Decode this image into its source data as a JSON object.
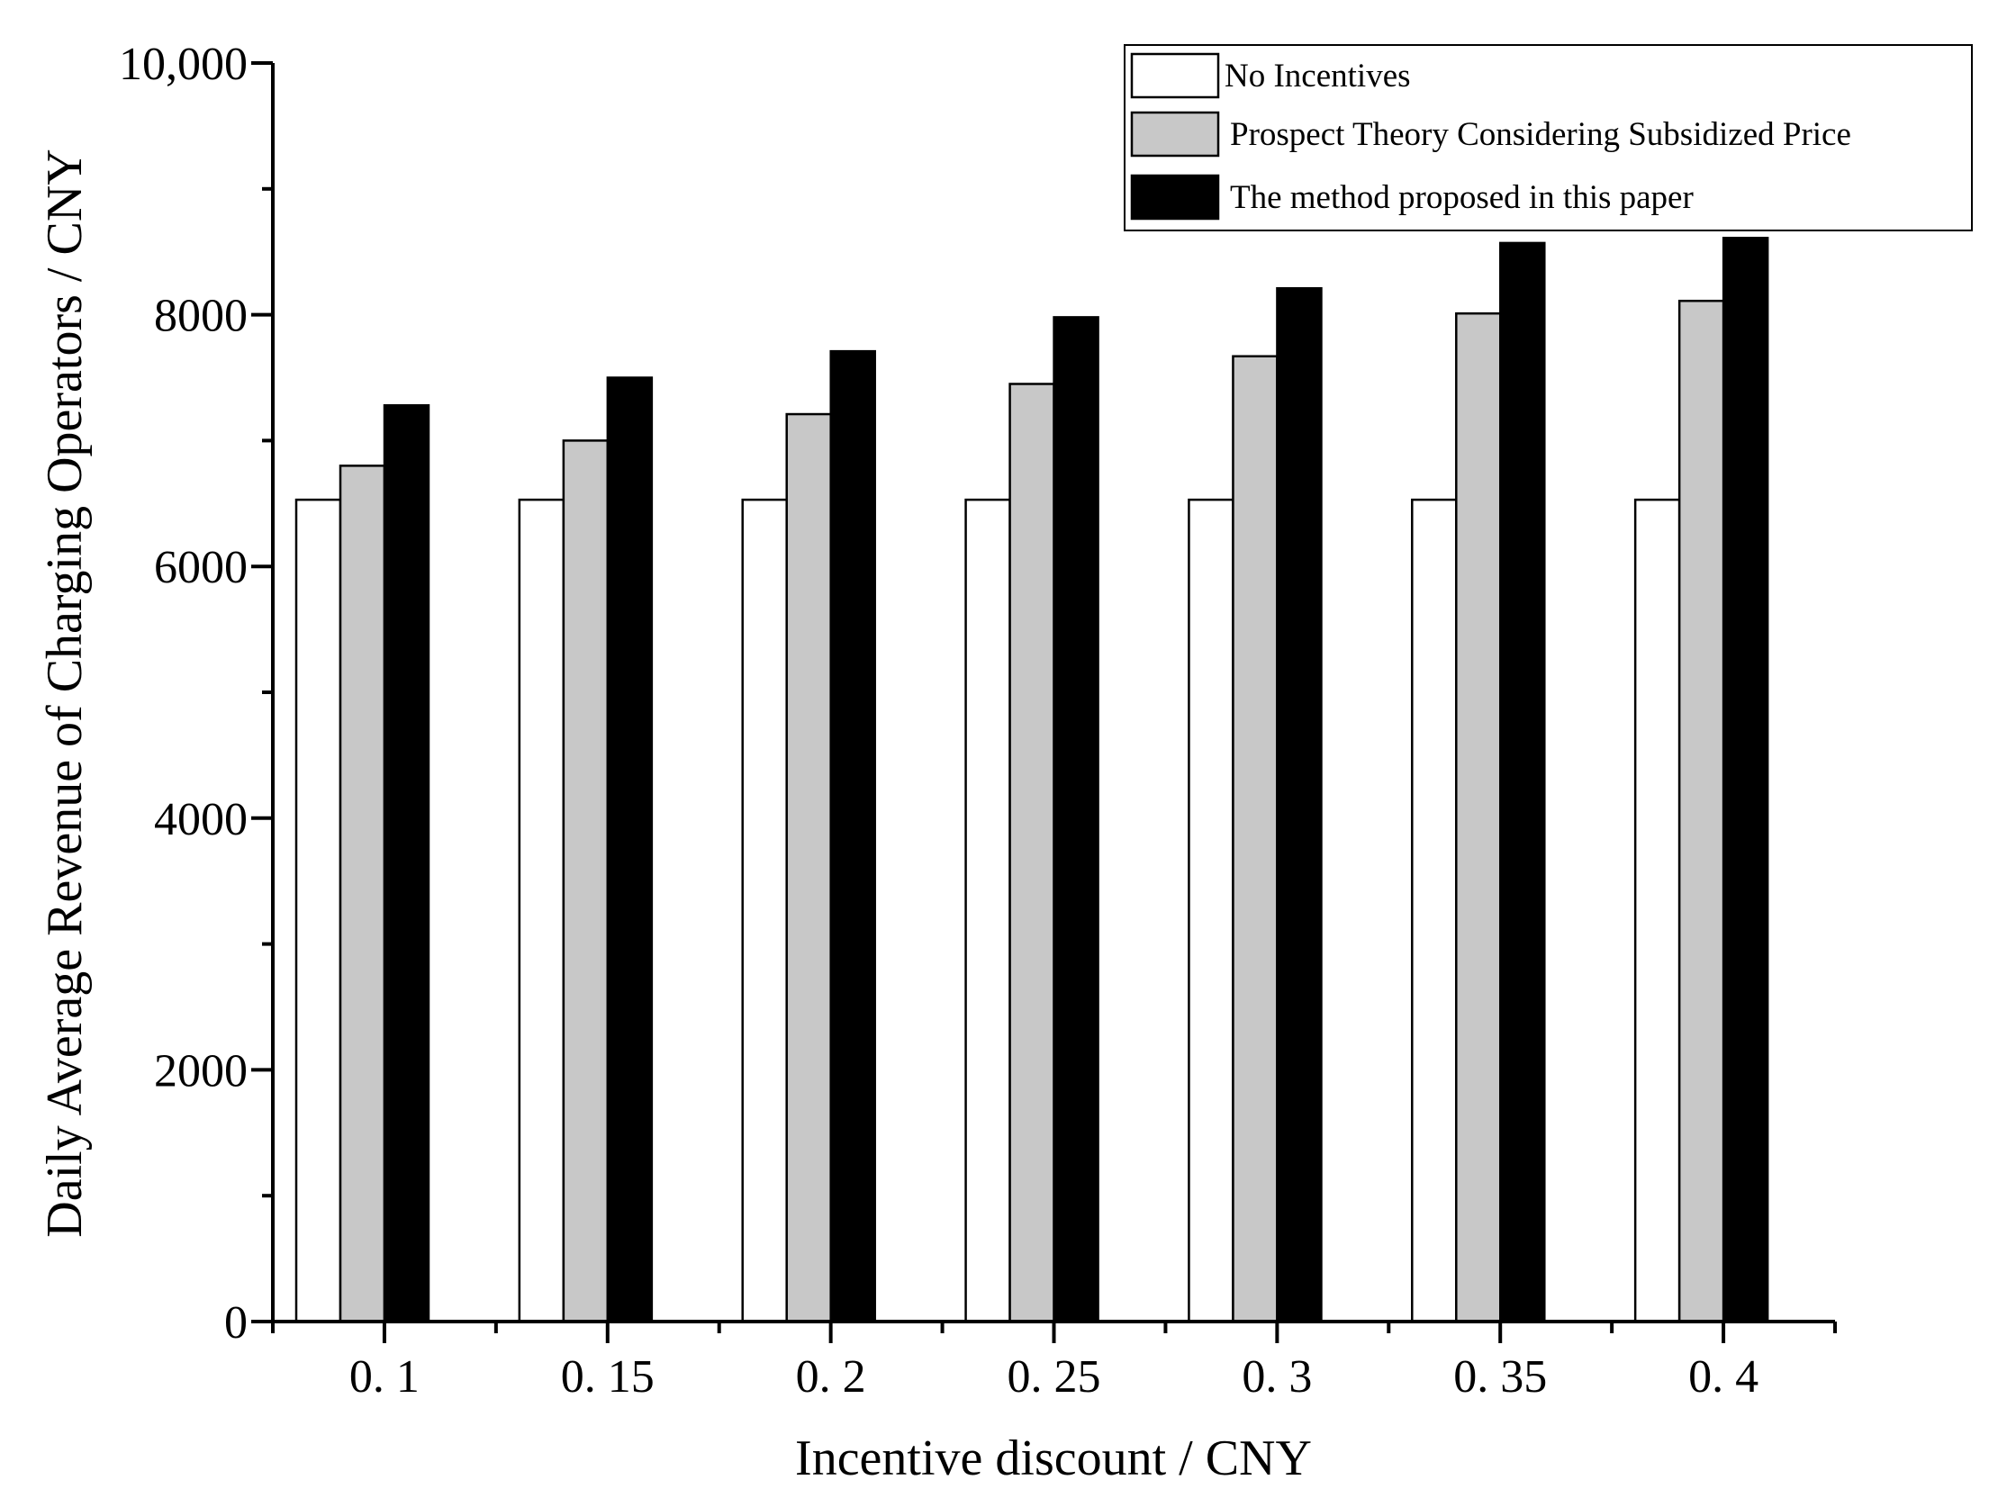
{
  "chart_data": {
    "type": "bar",
    "title": "",
    "xlabel": "Incentive discount / CNY",
    "ylabel": "Daily Average Revenue of Charging Operators / CNY",
    "categories": [
      "0. 1",
      "0. 15",
      "0. 2",
      "0. 25",
      "0. 3",
      "0. 35",
      "0. 4"
    ],
    "y_tick_labels": [
      "0",
      "2000",
      "4000",
      "6000",
      "8000",
      "10,000"
    ],
    "y_tick_values": [
      0,
      2000,
      4000,
      6000,
      8000,
      10000
    ],
    "ylim": [
      0,
      10000
    ],
    "grid": false,
    "legend_position": "top-right",
    "series": [
      {
        "name": "No Incentives",
        "color": "#ffffff",
        "values": [
          6530,
          6530,
          6530,
          6530,
          6530,
          6530,
          6530
        ]
      },
      {
        "name": "Prospect Theory  Considering Subsidized Price",
        "color": "#c8c8c8",
        "values": [
          6800,
          7000,
          7210,
          7450,
          7670,
          8010,
          8110
        ]
      },
      {
        "name": "The method proposed in this paper",
        "color": "#000000",
        "values": [
          7280,
          7500,
          7710,
          7980,
          8210,
          8570,
          8610
        ]
      }
    ]
  }
}
